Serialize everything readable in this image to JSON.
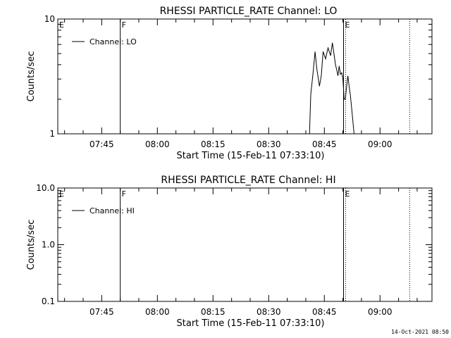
{
  "footer_timestamp": "14-Oct-2021 08:50",
  "chart_data": [
    {
      "type": "line",
      "title": "RHESSI PARTICLE_RATE Channel: LO",
      "xlabel": "Start Time (15-Feb-11 07:33:10)",
      "ylabel": "Counts/sec",
      "yscale": "log",
      "ylim": [
        1,
        10
      ],
      "ytick_labels": [
        "1",
        "10"
      ],
      "xlim": [
        "07:33:10",
        "09:14:00"
      ],
      "xtick_labels": [
        "07:45",
        "08:00",
        "08:15",
        "08:30",
        "08:45",
        "09:00"
      ],
      "legend": "Channel: LO",
      "legend_position": "top-left",
      "annotations": [
        {
          "text": "E",
          "time": "07:33:10",
          "line": "none"
        },
        {
          "text": "F",
          "time": "07:50:00",
          "line": "solid"
        },
        {
          "text": "E",
          "time": "08:50:10",
          "line": "solid+dotted"
        },
        {
          "text": "",
          "time": "09:08:00",
          "line": "dotted"
        }
      ],
      "series": [
        {
          "name": "Channel: LO",
          "points": [
            [
              "08:41:00",
              1.0
            ],
            [
              "08:41:20",
              2.2
            ],
            [
              "08:42:00",
              3.5
            ],
            [
              "08:42:30",
              5.2
            ],
            [
              "08:43:00",
              3.6
            ],
            [
              "08:43:40",
              2.6
            ],
            [
              "08:44:10",
              3.2
            ],
            [
              "08:44:40",
              5.2
            ],
            [
              "08:45:20",
              4.5
            ],
            [
              "08:46:00",
              5.6
            ],
            [
              "08:46:40",
              4.8
            ],
            [
              "08:47:10",
              6.2
            ],
            [
              "08:47:40",
              4.8
            ],
            [
              "08:48:00",
              4.0
            ],
            [
              "08:48:20",
              3.6
            ],
            [
              "08:48:40",
              3.2
            ],
            [
              "08:49:00",
              3.9
            ],
            [
              "08:49:20",
              3.3
            ],
            [
              "08:49:40",
              3.4
            ],
            [
              "08:50:00",
              3.0
            ],
            [
              "08:50:20",
              2.0
            ],
            [
              "08:50:40",
              2.0
            ],
            [
              "08:51:00",
              2.6
            ],
            [
              "08:51:20",
              3.2
            ],
            [
              "08:51:40",
              2.6
            ],
            [
              "08:52:00",
              2.2
            ],
            [
              "08:52:20",
              1.7
            ],
            [
              "08:52:40",
              1.3
            ],
            [
              "08:53:00",
              1.0
            ]
          ]
        }
      ]
    },
    {
      "type": "line",
      "title": "RHESSI PARTICLE_RATE Channel: HI",
      "xlabel": "Start Time (15-Feb-11 07:33:10)",
      "ylabel": "Counts/sec",
      "yscale": "log",
      "ylim": [
        0.1,
        10
      ],
      "ytick_labels": [
        "0.1",
        "1.0",
        "10.0"
      ],
      "xlim": [
        "07:33:10",
        "09:14:00"
      ],
      "xtick_labels": [
        "07:45",
        "08:00",
        "08:15",
        "08:30",
        "08:45",
        "09:00"
      ],
      "legend": "Channel: HI",
      "legend_position": "top-left",
      "annotations": [
        {
          "text": "E",
          "time": "07:33:10",
          "line": "none"
        },
        {
          "text": "F",
          "time": "07:50:00",
          "line": "solid"
        },
        {
          "text": "E",
          "time": "08:50:10",
          "line": "solid+dotted"
        },
        {
          "text": "",
          "time": "09:08:00",
          "line": "dotted"
        }
      ],
      "series": [
        {
          "name": "Channel: HI",
          "points": []
        }
      ]
    }
  ]
}
